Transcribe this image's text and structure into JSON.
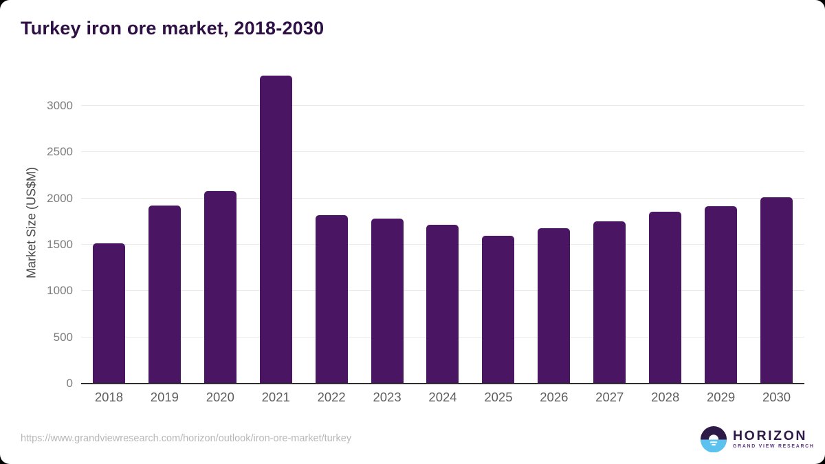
{
  "page": {
    "background_color": "#000000",
    "card_color": "#ffffff"
  },
  "chart_data": {
    "type": "bar",
    "title": "Turkey iron ore market, 2018-2030",
    "xlabel": "",
    "ylabel": "Market Size (US$M)",
    "categories": [
      "2018",
      "2019",
      "2020",
      "2021",
      "2022",
      "2023",
      "2024",
      "2025",
      "2026",
      "2027",
      "2028",
      "2029",
      "2030"
    ],
    "values": [
      1515,
      1925,
      2080,
      3325,
      1820,
      1785,
      1715,
      1595,
      1675,
      1750,
      1855,
      1915,
      2015
    ],
    "ylim": [
      0,
      3475
    ],
    "yticks": [
      0,
      500,
      1000,
      1500,
      2000,
      2500,
      3000
    ],
    "grid": true,
    "legend": false,
    "bar_color": "#4a1663",
    "gridline_color": "#e9e9e9",
    "title_color": "#2e1045"
  },
  "footer": {
    "source_url": "https://www.grandviewresearch.com/horizon/outlook/iron-ore-market/turkey",
    "logo": {
      "icon": "horizon-sun-circle-icon",
      "brand": "HORIZON",
      "tagline": "GRAND VIEW RESEARCH",
      "dark_color": "#2e1a47",
      "blue_color": "#5bc2ef"
    }
  }
}
